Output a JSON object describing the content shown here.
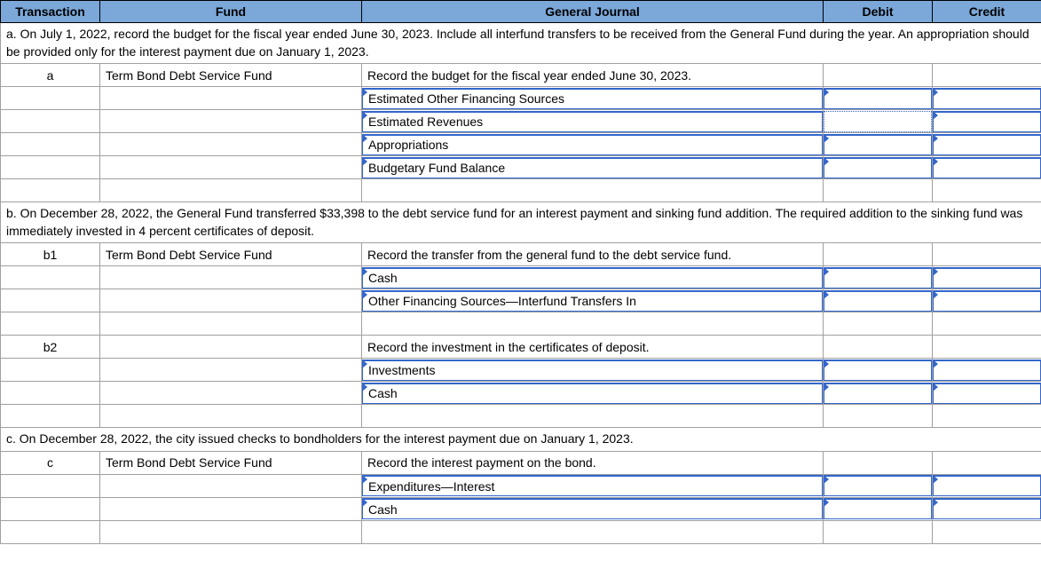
{
  "headers": {
    "transaction": "Transaction",
    "fund": "Fund",
    "journal": "General Journal",
    "debit": "Debit",
    "credit": "Credit"
  },
  "colors": {
    "header_bg": "#7ba7d9",
    "input_border": "#3366cc",
    "cell_border": "#a0a0a0"
  },
  "sections": {
    "a": {
      "instruction": "a. On July 1, 2022, record the budget for the fiscal year ended June 30, 2023. Include all interfund transfers to be received from the General Fund during the year. An appropriation should be provided only for the interest payment due on January 1, 2023.",
      "entries": [
        {
          "txn": "a",
          "fund": "Term Bond Debt Service Fund",
          "journal": "Record the budget for the fiscal year ended June 30, 2023.",
          "journal_is_input": false
        },
        {
          "txn": "",
          "fund": "",
          "journal": "Estimated Other Financing Sources",
          "journal_is_input": true,
          "debit_input": true,
          "credit_input": true
        },
        {
          "txn": "",
          "fund": "",
          "journal": "Estimated Revenues",
          "journal_is_input": true,
          "debit_input": true,
          "debit_focused": true,
          "credit_input": true
        },
        {
          "txn": "",
          "fund": "",
          "journal": "Appropriations",
          "journal_is_input": true,
          "debit_input": true,
          "credit_input": true
        },
        {
          "txn": "",
          "fund": "",
          "journal": "Budgetary Fund Balance",
          "journal_is_input": true,
          "debit_input": true,
          "credit_input": true
        },
        {
          "txn": "",
          "fund": "",
          "journal": "",
          "journal_is_input": false
        }
      ]
    },
    "b": {
      "instruction": "b. On December 28, 2022, the General Fund transferred $33,398 to the debt service fund for an interest payment and sinking fund addition. The required addition to the sinking fund was immediately invested in 4 percent certificates of deposit.",
      "entries": [
        {
          "txn": "b1",
          "fund": "Term Bond Debt Service Fund",
          "journal": "Record the transfer from the general fund to the debt service fund.",
          "journal_is_input": false
        },
        {
          "txn": "",
          "fund": "",
          "journal": "Cash",
          "journal_is_input": true,
          "debit_input": true,
          "credit_input": true
        },
        {
          "txn": "",
          "fund": "",
          "journal": "Other Financing Sources—Interfund Transfers In",
          "journal_is_input": true,
          "debit_input": true,
          "credit_input": true
        },
        {
          "txn": "",
          "fund": "",
          "journal": "",
          "journal_is_input": false
        },
        {
          "txn": "b2",
          "fund": "",
          "journal": "Record the investment in the certificates of deposit.",
          "journal_is_input": false
        },
        {
          "txn": "",
          "fund": "",
          "journal": "Investments",
          "journal_is_input": true,
          "debit_input": true,
          "credit_input": true
        },
        {
          "txn": "",
          "fund": "",
          "journal": "Cash",
          "journal_is_input": true,
          "debit_input": true,
          "credit_input": true
        },
        {
          "txn": "",
          "fund": "",
          "journal": "",
          "journal_is_input": false
        }
      ]
    },
    "c": {
      "instruction": "c. On December 28, 2022, the city issued checks to bondholders for the interest payment due on January 1, 2023.",
      "entries": [
        {
          "txn": "c",
          "fund": "Term Bond Debt Service Fund",
          "journal": "Record the interest payment on the bond.",
          "journal_is_input": false
        },
        {
          "txn": "",
          "fund": "",
          "journal": "Expenditures—Interest",
          "journal_is_input": true,
          "debit_input": true,
          "credit_input": true
        },
        {
          "txn": "",
          "fund": "",
          "journal": "Cash",
          "journal_is_input": true,
          "debit_input": true,
          "credit_input": true
        },
        {
          "txn": "",
          "fund": "",
          "journal": "",
          "journal_is_input": false
        }
      ]
    }
  }
}
